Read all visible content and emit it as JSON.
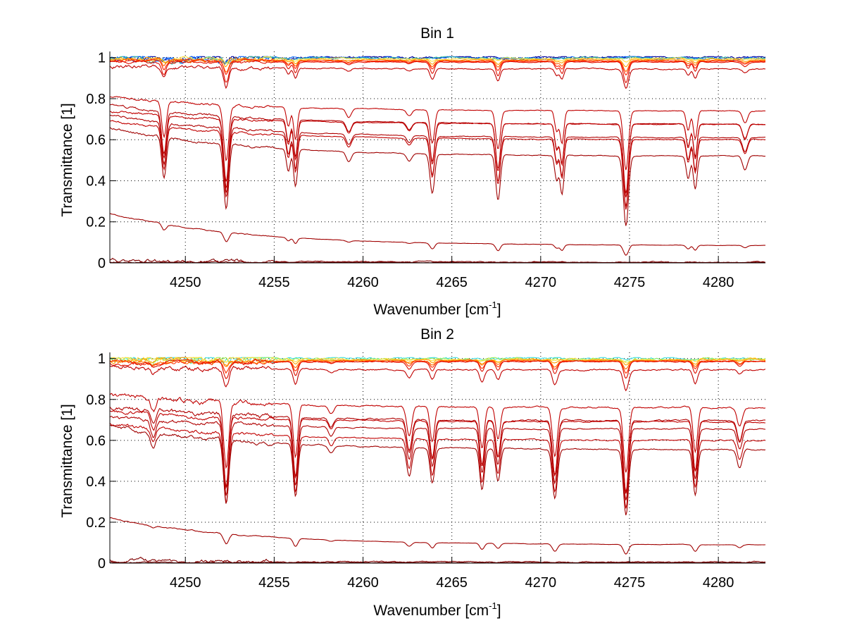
{
  "chart_data": [
    {
      "type": "line",
      "title": "Bin 1",
      "xlabel": "Wavenumber [cm",
      "xlabel_sup": "-1",
      "xlabel_end": "]",
      "ylabel": "Transmittance [1]",
      "xlim": [
        4245.75,
        4282.65
      ],
      "ylim": [
        0,
        1.03
      ],
      "xticks": [
        4250,
        4255,
        4260,
        4265,
        4270,
        4275,
        4280
      ],
      "xtick_labels": [
        "4250",
        "4255",
        "4260",
        "4265",
        "4270",
        "4275",
        "4280"
      ],
      "yticks": [
        0,
        0.2,
        0.4,
        0.6,
        0.8,
        1
      ],
      "ytick_labels": [
        "0",
        "0.2",
        "0.4",
        "0.6",
        "0.8",
        "1"
      ],
      "grid": true,
      "lines": [
        {
          "center": 4248.8,
          "width": 0.18,
          "strength": 1.0
        },
        {
          "center": 4252.3,
          "width": 0.2,
          "strength": 1.6
        },
        {
          "center": 4255.8,
          "width": 0.15,
          "strength": 0.55
        },
        {
          "center": 4256.2,
          "width": 0.15,
          "strength": 0.9
        },
        {
          "center": 4259.2,
          "width": 0.2,
          "strength": 0.25
        },
        {
          "center": 4262.6,
          "width": 0.2,
          "strength": 0.18
        },
        {
          "center": 4263.9,
          "width": 0.18,
          "strength": 0.95
        },
        {
          "center": 4267.6,
          "width": 0.18,
          "strength": 1.1
        },
        {
          "center": 4270.9,
          "width": 0.15,
          "strength": 0.6
        },
        {
          "center": 4271.2,
          "width": 0.15,
          "strength": 0.95
        },
        {
          "center": 4274.8,
          "width": 0.2,
          "strength": 1.7
        },
        {
          "center": 4278.3,
          "width": 0.15,
          "strength": 0.55
        },
        {
          "center": 4278.7,
          "width": 0.15,
          "strength": 0.8
        },
        {
          "center": 4281.5,
          "width": 0.2,
          "strength": 0.35
        }
      ],
      "series": [
        {
          "name": "s1",
          "color": "#0000a0",
          "base_start": 1.0,
          "base_end": 1.0,
          "depth": 0.0,
          "noise": 0.006
        },
        {
          "name": "s2",
          "color": "#0060ff",
          "base_start": 1.0,
          "base_end": 0.998,
          "depth": 0.0,
          "noise": 0.006
        },
        {
          "name": "s3",
          "color": "#40c0a0",
          "base_start": 0.995,
          "base_end": 0.997,
          "depth": 0.004,
          "noise": 0.005
        },
        {
          "name": "s4",
          "color": "#ffe040",
          "base_start": 0.992,
          "base_end": 0.995,
          "depth": 0.01,
          "noise": 0.003
        },
        {
          "name": "s5",
          "color": "#ffa000",
          "base_start": 0.99,
          "base_end": 0.99,
          "depth": 0.02,
          "noise": 0.003
        },
        {
          "name": "s6",
          "color": "#ff6000",
          "base_start": 0.988,
          "base_end": 0.985,
          "depth": 0.03,
          "noise": 0.002
        },
        {
          "name": "s7",
          "color": "#ff2000",
          "base_start": 0.985,
          "base_end": 0.982,
          "depth": 0.04,
          "noise": 0.002
        },
        {
          "name": "s8",
          "color": "#e01000",
          "base_start": 0.98,
          "base_end": 0.978,
          "depth": 0.06,
          "noise": 0.002
        },
        {
          "name": "s9",
          "color": "#c00000",
          "base_start": 0.96,
          "base_end": 0.945,
          "depth": 0.055,
          "noise": 0.003
        },
        {
          "name": "s10",
          "color": "#c00000",
          "base_start": 0.81,
          "base_end": 0.74,
          "depth": 0.17,
          "noise": 0.002
        },
        {
          "name": "s11",
          "color": "#b00000",
          "base_start": 0.77,
          "base_end": 0.675,
          "depth": 0.2,
          "noise": 0.002
        },
        {
          "name": "s12",
          "color": "#c00000",
          "base_start": 0.74,
          "base_end": 0.675,
          "depth": 0.21,
          "noise": 0.002
        },
        {
          "name": "s13",
          "color": "#b00000",
          "base_start": 0.72,
          "base_end": 0.61,
          "depth": 0.2,
          "noise": 0.002
        },
        {
          "name": "s14",
          "color": "#c00000",
          "base_start": 0.69,
          "base_end": 0.6,
          "depth": 0.2,
          "noise": 0.002
        },
        {
          "name": "s15",
          "color": "#a00000",
          "base_start": 0.66,
          "base_end": 0.52,
          "depth": 0.2,
          "noise": 0.002
        },
        {
          "name": "s16",
          "color": "#a00000",
          "base_start": 0.24,
          "base_end": 0.085,
          "depth": 0.03,
          "noise": 0.001
        },
        {
          "name": "s17",
          "color": "#800000",
          "base_start": 0.012,
          "base_end": 0.004,
          "depth": 0.0,
          "noise": 0.003
        },
        {
          "name": "s18",
          "color": "#800000",
          "base_start": 0.004,
          "base_end": 0.002,
          "depth": 0.0,
          "noise": 0.001
        }
      ]
    },
    {
      "type": "line",
      "title": "Bin 2",
      "xlabel": "Wavenumber [cm",
      "xlabel_sup": "-1",
      "xlabel_end": "]",
      "ylabel": "Transmittance [1]",
      "xlim": [
        4245.75,
        4282.65
      ],
      "ylim": [
        0,
        1.03
      ],
      "xticks": [
        4250,
        4255,
        4260,
        4265,
        4270,
        4275,
        4280
      ],
      "xtick_labels": [
        "4250",
        "4255",
        "4260",
        "4265",
        "4270",
        "4275",
        "4280"
      ],
      "yticks": [
        0,
        0.2,
        0.4,
        0.6,
        0.8,
        1
      ],
      "ytick_labels": [
        "0",
        "0.2",
        "0.4",
        "0.6",
        "0.8",
        "1"
      ],
      "grid": true,
      "lines": [
        {
          "center": 4248.2,
          "width": 0.2,
          "strength": 0.35
        },
        {
          "center": 4252.3,
          "width": 0.2,
          "strength": 1.6
        },
        {
          "center": 4256.2,
          "width": 0.18,
          "strength": 1.3
        },
        {
          "center": 4258.2,
          "width": 0.2,
          "strength": 0.2
        },
        {
          "center": 4262.6,
          "width": 0.2,
          "strength": 0.7
        },
        {
          "center": 4263.9,
          "width": 0.18,
          "strength": 0.85
        },
        {
          "center": 4266.7,
          "width": 0.18,
          "strength": 1.0
        },
        {
          "center": 4267.6,
          "width": 0.18,
          "strength": 0.8
        },
        {
          "center": 4270.8,
          "width": 0.2,
          "strength": 1.2
        },
        {
          "center": 4274.8,
          "width": 0.2,
          "strength": 1.6
        },
        {
          "center": 4278.7,
          "width": 0.18,
          "strength": 1.1
        },
        {
          "center": 4281.2,
          "width": 0.2,
          "strength": 0.45
        }
      ],
      "series": [
        {
          "name": "s1",
          "color": "#40e0e0",
          "base_start": 1.0,
          "base_end": 1.0,
          "depth": 0.0,
          "noise": 0.006
        },
        {
          "name": "s2",
          "color": "#a0f060",
          "base_start": 0.998,
          "base_end": 0.997,
          "depth": 0.003,
          "noise": 0.006
        },
        {
          "name": "s3",
          "color": "#ffe040",
          "base_start": 0.995,
          "base_end": 0.995,
          "depth": 0.008,
          "noise": 0.005
        },
        {
          "name": "s4",
          "color": "#ffa000",
          "base_start": 0.99,
          "base_end": 0.992,
          "depth": 0.015,
          "noise": 0.004
        },
        {
          "name": "s5",
          "color": "#ff7000",
          "base_start": 0.985,
          "base_end": 0.99,
          "depth": 0.025,
          "noise": 0.003
        },
        {
          "name": "s6",
          "color": "#ff3000",
          "base_start": 0.98,
          "base_end": 0.987,
          "depth": 0.035,
          "noise": 0.003
        },
        {
          "name": "s7",
          "color": "#e01000",
          "base_start": 0.975,
          "base_end": 0.985,
          "depth": 0.05,
          "noise": 0.003
        },
        {
          "name": "s8",
          "color": "#c00000",
          "base_start": 0.96,
          "base_end": 0.945,
          "depth": 0.06,
          "noise": 0.004
        },
        {
          "name": "s9",
          "color": "#c00000",
          "base_start": 0.82,
          "base_end": 0.76,
          "depth": 0.2,
          "noise": 0.004
        },
        {
          "name": "s10",
          "color": "#b00000",
          "base_start": 0.76,
          "base_end": 0.695,
          "depth": 0.22,
          "noise": 0.004
        },
        {
          "name": "s11",
          "color": "#c00000",
          "base_start": 0.74,
          "base_end": 0.69,
          "depth": 0.22,
          "noise": 0.003
        },
        {
          "name": "s12",
          "color": "#b00000",
          "base_start": 0.71,
          "base_end": 0.655,
          "depth": 0.22,
          "noise": 0.003
        },
        {
          "name": "s13",
          "color": "#c00000",
          "base_start": 0.68,
          "base_end": 0.6,
          "depth": 0.21,
          "noise": 0.003
        },
        {
          "name": "s14",
          "color": "#a00000",
          "base_start": 0.67,
          "base_end": 0.555,
          "depth": 0.2,
          "noise": 0.003
        },
        {
          "name": "s15",
          "color": "#a00000",
          "base_start": 0.22,
          "base_end": 0.09,
          "depth": 0.03,
          "noise": 0.001
        },
        {
          "name": "s16",
          "color": "#800000",
          "base_start": 0.012,
          "base_end": 0.005,
          "depth": 0.0,
          "noise": 0.003
        },
        {
          "name": "s17",
          "color": "#800000",
          "base_start": 0.004,
          "base_end": 0.002,
          "depth": 0.0,
          "noise": 0.001
        }
      ]
    }
  ]
}
